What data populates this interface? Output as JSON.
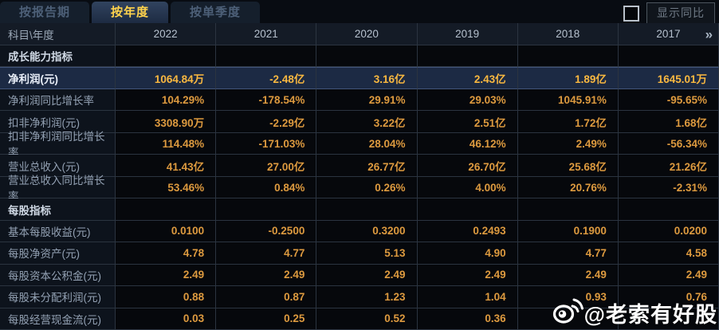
{
  "tabs": [
    {
      "label": "按报告期",
      "active": false
    },
    {
      "label": "按年度",
      "active": true
    },
    {
      "label": "按单季度",
      "active": false
    }
  ],
  "controls": {
    "show_yoy_label": "显示同比",
    "checkbox_checked": false
  },
  "table": {
    "corner_label": "科目\\年度",
    "columns": [
      "2022",
      "2021",
      "2020",
      "2019",
      "2018",
      "2017"
    ],
    "more_icon": "»",
    "rows": [
      {
        "type": "section",
        "label": "成长能力指标",
        "values": [
          "",
          "",
          "",
          "",
          "",
          ""
        ]
      },
      {
        "type": "data",
        "highlight": true,
        "label": "净利润(元)",
        "values": [
          "1064.84万",
          "-2.48亿",
          "3.16亿",
          "2.43亿",
          "1.89亿",
          "1645.01万"
        ]
      },
      {
        "type": "data",
        "label": "净利润同比增长率",
        "values": [
          "104.29%",
          "-178.54%",
          "29.91%",
          "29.03%",
          "1045.91%",
          "-95.65%"
        ]
      },
      {
        "type": "data",
        "label": "扣非净利润(元)",
        "values": [
          "3308.90万",
          "-2.29亿",
          "3.22亿",
          "2.51亿",
          "1.72亿",
          "1.68亿"
        ]
      },
      {
        "type": "data",
        "label": "扣非净利润同比增长率",
        "values": [
          "114.48%",
          "-171.03%",
          "28.04%",
          "46.12%",
          "2.49%",
          "-56.34%"
        ]
      },
      {
        "type": "data",
        "label": "营业总收入(元)",
        "values": [
          "41.43亿",
          "27.00亿",
          "26.77亿",
          "26.70亿",
          "25.68亿",
          "21.26亿"
        ]
      },
      {
        "type": "data",
        "label": "营业总收入同比增长率",
        "values": [
          "53.46%",
          "0.84%",
          "0.26%",
          "4.00%",
          "20.76%",
          "-2.31%"
        ]
      },
      {
        "type": "section",
        "label": "每股指标",
        "values": [
          "",
          "",
          "",
          "",
          "",
          ""
        ]
      },
      {
        "type": "data",
        "label": "基本每股收益(元)",
        "values": [
          "0.0100",
          "-0.2500",
          "0.3200",
          "0.2493",
          "0.1900",
          "0.0200"
        ]
      },
      {
        "type": "data",
        "label": "每股净资产(元)",
        "values": [
          "4.78",
          "4.77",
          "5.13",
          "4.90",
          "4.77",
          "4.58"
        ]
      },
      {
        "type": "data",
        "label": "每股资本公积金(元)",
        "values": [
          "2.49",
          "2.49",
          "2.49",
          "2.49",
          "2.49",
          "2.49"
        ]
      },
      {
        "type": "data",
        "label": "每股未分配利润(元)",
        "values": [
          "0.88",
          "0.87",
          "1.23",
          "1.04",
          "0.93",
          "0.76"
        ]
      },
      {
        "type": "data",
        "label": "每股经营现金流(元)",
        "values": [
          "0.03",
          "0.25",
          "0.52",
          "0.36",
          "",
          ""
        ]
      }
    ]
  },
  "watermark": {
    "handle": "@老索有好股",
    "icon": "weibo-icon"
  },
  "colors": {
    "accent": "#ffd34d",
    "value_text": "#dd9a3f",
    "highlight_bg": "#1c2a44",
    "grid_line": "#2b3440"
  }
}
